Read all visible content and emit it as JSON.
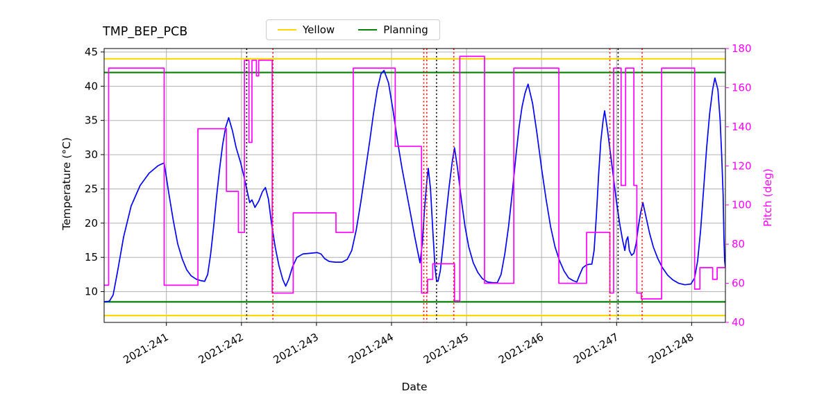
{
  "title": "TMP_BEP_PCB",
  "legend": {
    "items": [
      {
        "label": "Yellow",
        "color": "#FFD700"
      },
      {
        "label": "Planning",
        "color": "#008000"
      }
    ]
  },
  "chart_data": {
    "type": "line",
    "title": "TMP_BEP_PCB",
    "xlabel": "Date",
    "ylabel": "Temperature (°C)",
    "ylabel_right": "Pitch (deg)",
    "grid": true,
    "legend_position": "top center",
    "xlim": [
      240.17,
      248.45
    ],
    "ylim_left": [
      5.5,
      45.5
    ],
    "ylim_right": [
      40,
      180
    ],
    "x_tick_positions": [
      241,
      242,
      243,
      244,
      245,
      246,
      247,
      248
    ],
    "x_tick_labels": [
      "2021:241",
      "2021:242",
      "2021:243",
      "2021:244",
      "2021:245",
      "2021:246",
      "2021:247",
      "2021:248"
    ],
    "y_left_ticks": [
      45,
      40,
      35,
      30,
      25,
      20,
      15,
      10
    ],
    "y_right_ticks": [
      180,
      160,
      140,
      120,
      100,
      80,
      60,
      40
    ],
    "colors": {
      "temperature": "#0000FF",
      "pitch": "#FF00FF",
      "yellow_limit": "#FFD700",
      "planning_limit": "#008000",
      "event_black": "#000000",
      "event_red": "#FF0000",
      "grid": "#b0b0b0"
    },
    "series": [
      {
        "name": "Temperature",
        "axis": "left",
        "style": "line",
        "color": "#0000FF",
        "points": [
          [
            240.17,
            8.5
          ],
          [
            240.24,
            8.6
          ],
          [
            240.29,
            9.5
          ],
          [
            240.35,
            13
          ],
          [
            240.43,
            18
          ],
          [
            240.53,
            22.5
          ],
          [
            240.65,
            25.5
          ],
          [
            240.77,
            27.3
          ],
          [
            240.89,
            28.4
          ],
          [
            240.97,
            28.8
          ],
          [
            241.03,
            24.5
          ],
          [
            241.09,
            20.5
          ],
          [
            241.15,
            17
          ],
          [
            241.21,
            14.8
          ],
          [
            241.27,
            13.2
          ],
          [
            241.33,
            12.3
          ],
          [
            241.4,
            11.8
          ],
          [
            241.46,
            11.6
          ],
          [
            241.51,
            11.5
          ],
          [
            241.55,
            12.5
          ],
          [
            241.59,
            15.5
          ],
          [
            241.63,
            19.5
          ],
          [
            241.67,
            24
          ],
          [
            241.71,
            28
          ],
          [
            241.75,
            31.5
          ],
          [
            241.79,
            34
          ],
          [
            241.83,
            35.4
          ],
          [
            241.88,
            33.5
          ],
          [
            241.93,
            31
          ],
          [
            241.99,
            28.8
          ],
          [
            242.04,
            26.5
          ],
          [
            242.08,
            24.5
          ],
          [
            242.11,
            23
          ],
          [
            242.14,
            23.4
          ],
          [
            242.18,
            22.3
          ],
          [
            242.23,
            23.2
          ],
          [
            242.28,
            24.6
          ],
          [
            242.32,
            25.2
          ],
          [
            242.36,
            23.5
          ],
          [
            242.4,
            20
          ],
          [
            242.45,
            16.5
          ],
          [
            242.5,
            13.8
          ],
          [
            242.55,
            11.8
          ],
          [
            242.59,
            10.8
          ],
          [
            242.63,
            11.8
          ],
          [
            242.68,
            13.6
          ],
          [
            242.74,
            15
          ],
          [
            242.82,
            15.5
          ],
          [
            242.92,
            15.6
          ],
          [
            243.01,
            15.7
          ],
          [
            243.06,
            15.5
          ],
          [
            243.11,
            14.8
          ],
          [
            243.17,
            14.4
          ],
          [
            243.25,
            14.3
          ],
          [
            243.34,
            14.3
          ],
          [
            243.41,
            14.7
          ],
          [
            243.47,
            16
          ],
          [
            243.53,
            19
          ],
          [
            243.59,
            23
          ],
          [
            243.65,
            27.5
          ],
          [
            243.71,
            32
          ],
          [
            243.76,
            36
          ],
          [
            243.81,
            39.5
          ],
          [
            243.86,
            41.8
          ],
          [
            243.9,
            42.3
          ],
          [
            243.96,
            40.5
          ],
          [
            244.02,
            36.5
          ],
          [
            244.08,
            32
          ],
          [
            244.14,
            28
          ],
          [
            244.2,
            24.5
          ],
          [
            244.26,
            21
          ],
          [
            244.31,
            18
          ],
          [
            244.35,
            15.8
          ],
          [
            244.38,
            14.2
          ],
          [
            244.41,
            17
          ],
          [
            244.44,
            22
          ],
          [
            244.47,
            26
          ],
          [
            244.49,
            28
          ],
          [
            244.52,
            25
          ],
          [
            244.55,
            19
          ],
          [
            244.58,
            13.5
          ],
          [
            244.6,
            11.6
          ],
          [
            244.62,
            11.5
          ],
          [
            244.65,
            13
          ],
          [
            244.69,
            17
          ],
          [
            244.73,
            21.5
          ],
          [
            244.77,
            25.5
          ],
          [
            244.81,
            29
          ],
          [
            244.84,
            31
          ],
          [
            244.88,
            28
          ],
          [
            244.93,
            23.5
          ],
          [
            244.98,
            19.5
          ],
          [
            245.03,
            16.5
          ],
          [
            245.09,
            14.2
          ],
          [
            245.15,
            12.8
          ],
          [
            245.21,
            11.9
          ],
          [
            245.28,
            11.4
          ],
          [
            245.35,
            11.3
          ],
          [
            245.41,
            11.3
          ],
          [
            245.46,
            12.5
          ],
          [
            245.51,
            15.5
          ],
          [
            245.56,
            19.5
          ],
          [
            245.61,
            24.5
          ],
          [
            245.66,
            30
          ],
          [
            245.7,
            34
          ],
          [
            245.74,
            37
          ],
          [
            245.78,
            39
          ],
          [
            245.82,
            40.3
          ],
          [
            245.88,
            37.5
          ],
          [
            245.94,
            33
          ],
          [
            246.0,
            28
          ],
          [
            246.06,
            23.5
          ],
          [
            246.12,
            19.5
          ],
          [
            246.18,
            16.5
          ],
          [
            246.24,
            14.5
          ],
          [
            246.3,
            13
          ],
          [
            246.36,
            12
          ],
          [
            246.42,
            11.6
          ],
          [
            246.47,
            11.4
          ],
          [
            246.51,
            12.5
          ],
          [
            246.55,
            13.5
          ],
          [
            246.6,
            13.9
          ],
          [
            246.64,
            14
          ],
          [
            246.67,
            14
          ],
          [
            246.7,
            16
          ],
          [
            246.73,
            21
          ],
          [
            246.76,
            27
          ],
          [
            246.79,
            32
          ],
          [
            246.82,
            35
          ],
          [
            246.84,
            36.4
          ],
          [
            246.88,
            33.5
          ],
          [
            246.92,
            30
          ],
          [
            246.96,
            26.5
          ],
          [
            247.0,
            23
          ],
          [
            247.04,
            20
          ],
          [
            247.08,
            17.5
          ],
          [
            247.11,
            16
          ],
          [
            247.13,
            17.5
          ],
          [
            247.15,
            18
          ],
          [
            247.17,
            16
          ],
          [
            247.2,
            15.3
          ],
          [
            247.23,
            15.6
          ],
          [
            247.26,
            17
          ],
          [
            247.29,
            19.5
          ],
          [
            247.32,
            21.5
          ],
          [
            247.35,
            23
          ],
          [
            247.39,
            21
          ],
          [
            247.44,
            18.5
          ],
          [
            247.49,
            16.5
          ],
          [
            247.55,
            14.8
          ],
          [
            247.61,
            13.5
          ],
          [
            247.68,
            12.4
          ],
          [
            247.75,
            11.7
          ],
          [
            247.83,
            11.2
          ],
          [
            247.91,
            11
          ],
          [
            247.99,
            11.1
          ],
          [
            248.04,
            12
          ],
          [
            248.08,
            14.5
          ],
          [
            248.12,
            19
          ],
          [
            248.16,
            25
          ],
          [
            248.2,
            31
          ],
          [
            248.24,
            36
          ],
          [
            248.28,
            39.5
          ],
          [
            248.31,
            41.2
          ],
          [
            248.35,
            39.5
          ],
          [
            248.38,
            35
          ],
          [
            248.4,
            30
          ],
          [
            248.42,
            24
          ],
          [
            248.43,
            18
          ],
          [
            248.44,
            14.5
          ],
          [
            248.45,
            13.5
          ]
        ]
      },
      {
        "name": "Pitch",
        "axis": "right",
        "style": "step-post",
        "color": "#FF00FF",
        "points": [
          [
            240.17,
            59
          ],
          [
            240.23,
            170
          ],
          [
            240.97,
            59
          ],
          [
            241.42,
            139
          ],
          [
            241.8,
            107
          ],
          [
            241.96,
            86
          ],
          [
            242.04,
            174
          ],
          [
            242.1,
            132
          ],
          [
            242.14,
            174
          ],
          [
            242.2,
            166
          ],
          [
            242.23,
            174
          ],
          [
            242.41,
            55
          ],
          [
            242.69,
            96
          ],
          [
            243.26,
            86
          ],
          [
            243.49,
            170
          ],
          [
            244.05,
            130
          ],
          [
            244.4,
            55
          ],
          [
            244.48,
            62
          ],
          [
            244.55,
            70
          ],
          [
            244.84,
            51
          ],
          [
            244.91,
            176
          ],
          [
            245.24,
            60
          ],
          [
            245.63,
            170
          ],
          [
            246.23,
            60
          ],
          [
            246.6,
            86
          ],
          [
            246.91,
            55
          ],
          [
            246.96,
            170
          ],
          [
            247.06,
            110
          ],
          [
            247.12,
            170
          ],
          [
            247.23,
            110
          ],
          [
            247.27,
            55
          ],
          [
            247.33,
            52
          ],
          [
            247.6,
            170
          ],
          [
            248.04,
            57
          ],
          [
            248.11,
            68
          ],
          [
            248.28,
            62
          ],
          [
            248.34,
            68
          ]
        ]
      }
    ],
    "hlines": [
      {
        "y": 44,
        "axis": "left",
        "color": "#FFD700",
        "name": "yellow-limit-high"
      },
      {
        "y": 6.5,
        "axis": "left",
        "color": "#FFD700",
        "name": "yellow-limit-low"
      },
      {
        "y": 42,
        "axis": "left",
        "color": "#008000",
        "name": "planning-limit-high"
      },
      {
        "y": 8.5,
        "axis": "left",
        "color": "#008000",
        "name": "planning-limit-low"
      }
    ],
    "vlines": [
      {
        "x": 242.07,
        "color": "#000000",
        "style": "dotted"
      },
      {
        "x": 242.42,
        "color": "#FF0000",
        "style": "dotted"
      },
      {
        "x": 244.43,
        "color": "#FF0000",
        "style": "dotted"
      },
      {
        "x": 244.47,
        "color": "#FF0000",
        "style": "dotted"
      },
      {
        "x": 244.6,
        "color": "#000000",
        "style": "dotted"
      },
      {
        "x": 244.83,
        "color": "#FF0000",
        "style": "dotted"
      },
      {
        "x": 246.91,
        "color": "#FF0000",
        "style": "dotted"
      },
      {
        "x": 247.02,
        "color": "#000000",
        "style": "dotted"
      },
      {
        "x": 247.34,
        "color": "#FF0000",
        "style": "dotted"
      }
    ]
  }
}
